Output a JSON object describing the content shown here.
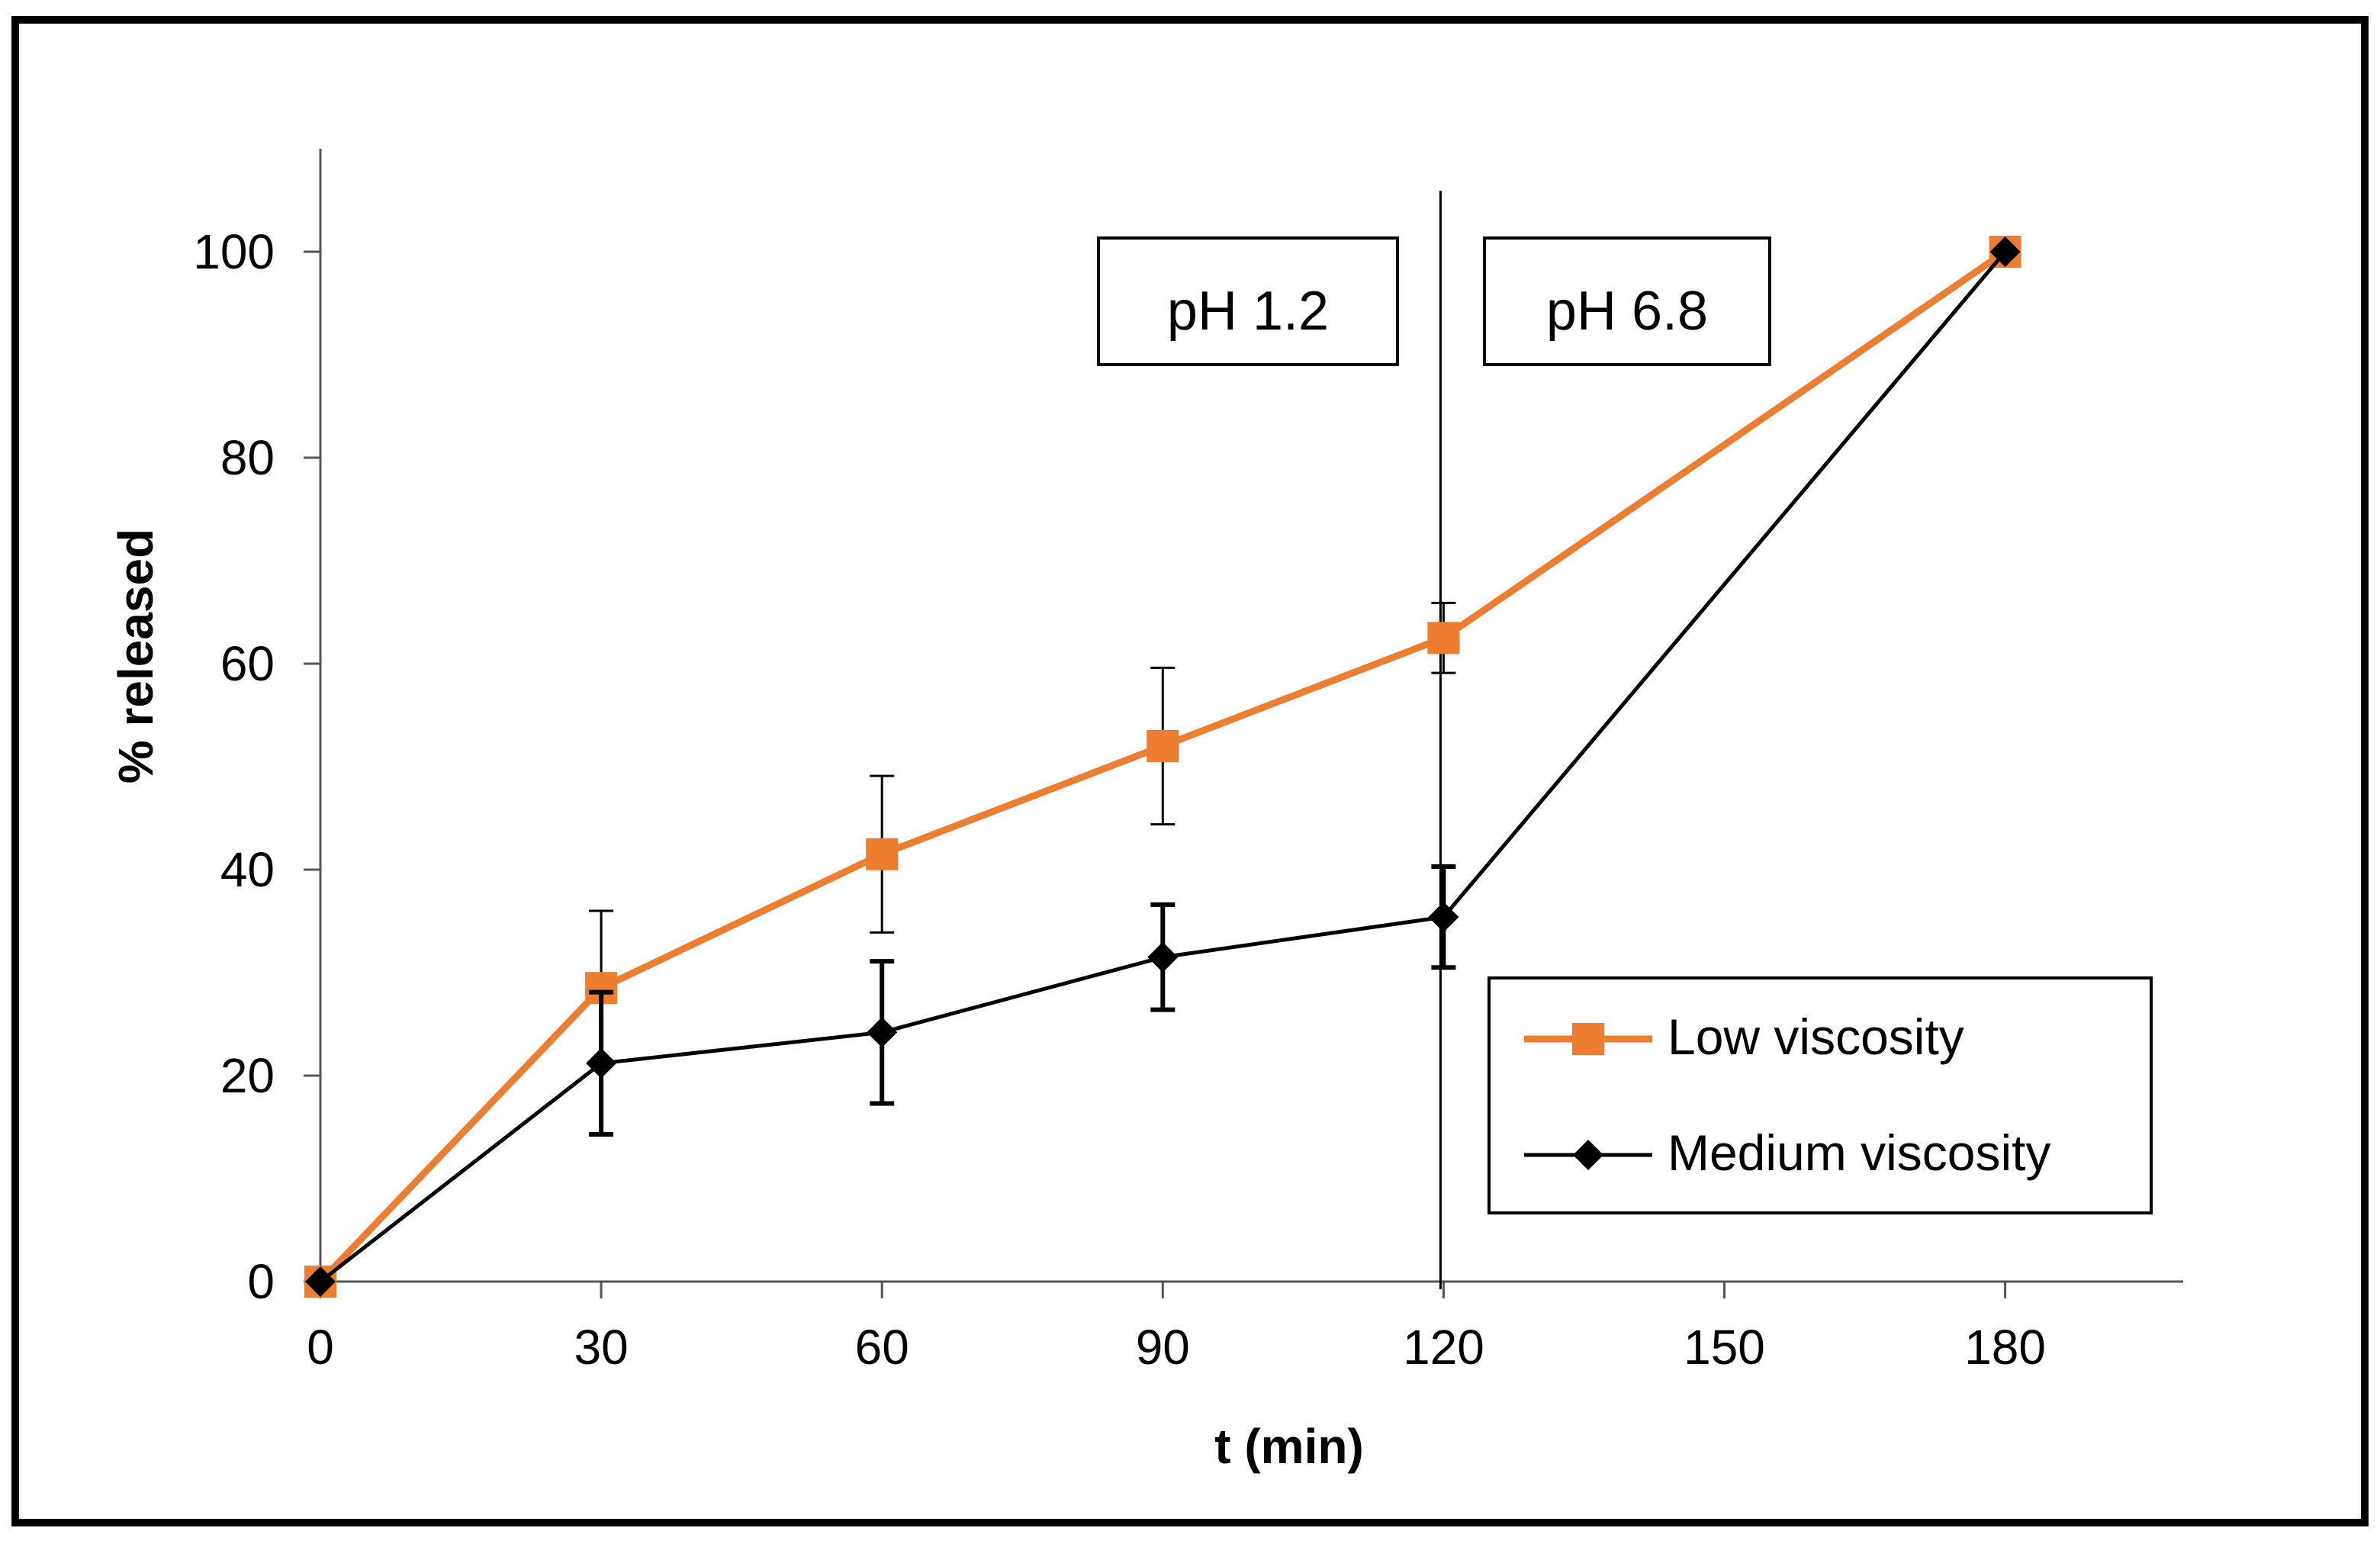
{
  "chart_data": {
    "type": "line",
    "xlabel": "t (min)",
    "ylabel": "% released",
    "xlim": [
      0,
      200
    ],
    "ylim": [
      0,
      110
    ],
    "x_ticks": [
      0,
      30,
      60,
      90,
      120,
      150,
      180
    ],
    "x_tick_labels": [
      "0",
      "30",
      "60",
      "90",
      "120",
      "150",
      "180"
    ],
    "y_ticks": [
      0,
      20,
      40,
      60,
      80,
      100
    ],
    "y_tick_labels": [
      "0",
      "20",
      "40",
      "60",
      "80",
      "100"
    ],
    "grid": false,
    "legend_position": "bottom-right",
    "vertical_line_x": 120,
    "annotations": [
      {
        "text": "pH 1.2",
        "side": "left-of-line"
      },
      {
        "text": "pH 6.8",
        "side": "right-of-line"
      }
    ],
    "series": [
      {
        "name": "Low viscosity",
        "color": "#ED7D31",
        "marker": "square",
        "x": [
          0,
          30,
          60,
          90,
          120,
          180
        ],
        "y": [
          0,
          28.5,
          41.5,
          52,
          62.5,
          100
        ],
        "error": [
          0,
          7.5,
          7.6,
          7.6,
          3.4,
          0
        ]
      },
      {
        "name": "Medium viscosity",
        "color": "#000000",
        "marker": "diamond",
        "x": [
          0,
          30,
          60,
          90,
          120,
          180
        ],
        "y": [
          0,
          21.2,
          24.2,
          31.5,
          35.4,
          100
        ],
        "error": [
          0,
          6.9,
          6.9,
          5.1,
          4.9,
          0
        ]
      }
    ]
  }
}
